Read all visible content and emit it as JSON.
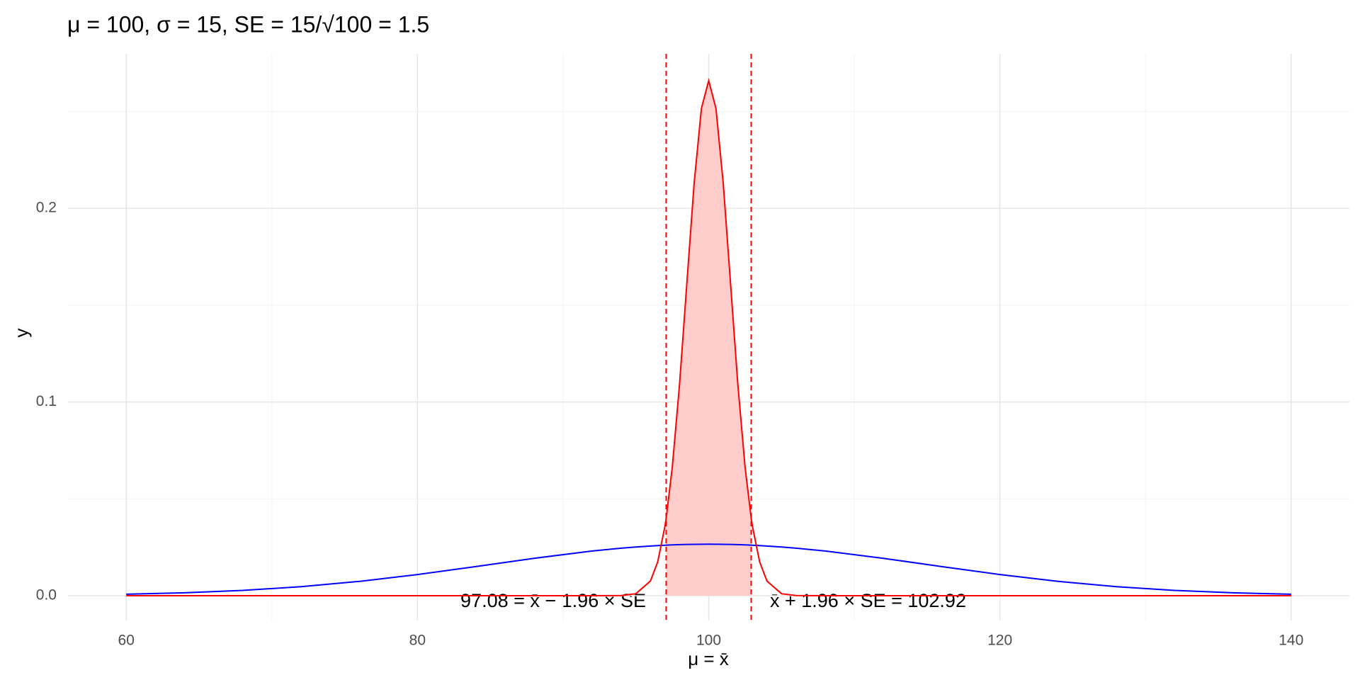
{
  "chart_data": {
    "type": "line",
    "title": "μ  = 100, σ  = 15, SE = 15/√100 = 1.5",
    "x_label": "μ  =  x̄",
    "y_label": "y",
    "x": [
      60,
      64,
      68,
      72,
      76,
      80,
      84,
      88,
      92,
      94,
      95,
      96,
      96.5,
      97,
      97.08,
      97.5,
      98,
      98.5,
      99,
      99.5,
      100,
      100.5,
      101,
      101.5,
      102,
      102.5,
      102.92,
      103,
      103.5,
      104,
      105,
      106,
      108,
      112,
      116,
      120,
      124,
      128,
      132,
      136,
      140
    ],
    "series": [
      {
        "color": "#0000ff",
        "values": [
          0.00076,
          0.00149,
          0.00273,
          0.00466,
          0.00739,
          0.01093,
          0.01506,
          0.01931,
          0.02307,
          0.02455,
          0.02516,
          0.02567,
          0.02588,
          0.02607,
          0.0261,
          0.02623,
          0.02636,
          0.02646,
          0.02654,
          0.02658,
          0.0266,
          0.02658,
          0.02654,
          0.02646,
          0.02636,
          0.02623,
          0.0261,
          0.02607,
          0.02588,
          0.02567,
          0.02516,
          0.02455,
          0.02307,
          0.01931,
          0.01506,
          0.01093,
          0.00739,
          0.00466,
          0.00273,
          0.00149,
          0.00076
        ]
      },
      {
        "color": "#ff0000",
        "fill": "#ffcccc",
        "values": [
          0,
          0,
          0,
          0,
          0,
          0,
          0,
          0,
          0,
          9e-05,
          0.00103,
          0.0076,
          0.01748,
          0.03599,
          0.03999,
          0.06632,
          0.10934,
          0.16131,
          0.21296,
          0.25159,
          0.26596,
          0.25159,
          0.21296,
          0.16131,
          0.10934,
          0.06632,
          0.03999,
          0.03599,
          0.01748,
          0.0076,
          0.00103,
          9e-05,
          0,
          0,
          0,
          0,
          0,
          0,
          0,
          0,
          0
        ]
      }
    ],
    "vlines": {
      "values": [
        97.08,
        102.92
      ],
      "color": "#ff0000"
    },
    "annotations": [
      "97.08 = x̄ − 1.96 × SE",
      "x̄ + 1.96 × SE = 102.92"
    ],
    "xlim": [
      56,
      144
    ],
    "xticks": [
      60,
      80,
      100,
      120,
      140
    ],
    "x_minor_ticks": [
      70,
      90,
      110,
      130
    ],
    "ylim": [
      -0.0128,
      0.2798
    ],
    "yticks": [
      {
        "value": 0,
        "label": "0.0"
      },
      {
        "value": 0.1,
        "label": "0.1"
      },
      {
        "value": 0.2,
        "label": "0.2"
      }
    ],
    "y_minor_ticks": [
      0.05,
      0.15,
      0.25
    ],
    "grid": true
  }
}
